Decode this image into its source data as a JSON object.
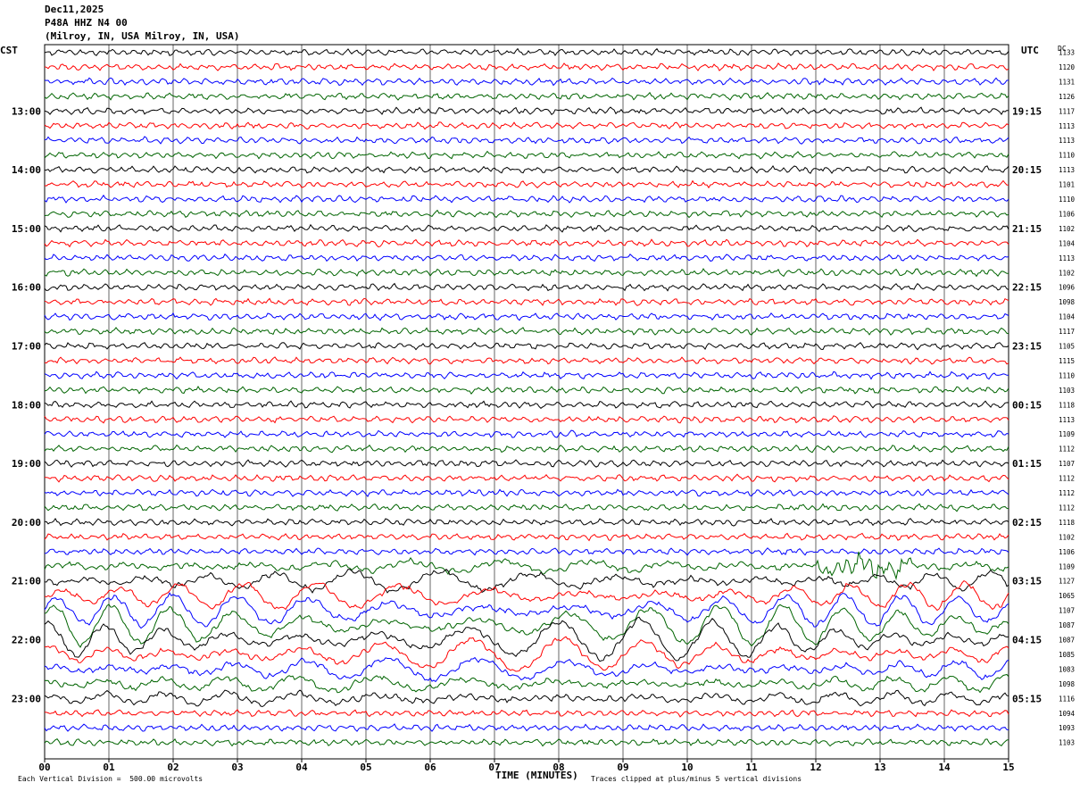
{
  "header": {
    "date": "Dec11,2025",
    "station": "P48A HHZ N4 00",
    "location": "(Milroy, IN, USA Milroy, IN, USA)"
  },
  "left_axis_title": "CST",
  "right_axis_title": "UTC",
  "right_column_title": "DC",
  "footer": {
    "vertical_scale": "Each Vertical Division =  500.00 microvolts",
    "time_label": "TIME (MINUTES)",
    "clip_note": "Traces clipped at plus/minus 5 vertical divisions"
  },
  "colors": {
    "trace_cycle": [
      "#000000",
      "#ff0000",
      "#0000ff",
      "#006400"
    ],
    "grid": "#000000"
  },
  "chart_data": {
    "type": "line",
    "title": "P48A HHZ N4 00",
    "xlabel": "TIME (MINUTES)",
    "xlim": [
      0,
      15
    ],
    "x_ticks": [
      "00",
      "01",
      "02",
      "03",
      "04",
      "05",
      "06",
      "07",
      "08",
      "09",
      "10",
      "11",
      "12",
      "13",
      "14",
      "15"
    ],
    "left_time_labels": [
      "13:00",
      "14:00",
      "15:00",
      "16:00",
      "17:00",
      "18:00",
      "19:00",
      "20:00",
      "21:00",
      "22:00",
      "23:00"
    ],
    "right_time_labels": [
      "19:15",
      "20:15",
      "21:15",
      "22:15",
      "23:15",
      "00:15",
      "01:15",
      "02:15",
      "03:15",
      "04:15",
      "05:15"
    ],
    "dc_offsets": [
      "1133",
      "1120",
      "1131",
      "1126",
      "1117",
      "1113",
      "1113",
      "1110",
      "1113",
      "1101",
      "1110",
      "1106",
      "1102",
      "1104",
      "1113",
      "1102",
      "1096",
      "1098",
      "1104",
      "1117",
      "1105",
      "1115",
      "1110",
      "1103",
      "1118",
      "1113",
      "1109",
      "1112",
      "1107",
      "1112",
      "1112",
      "1112",
      "1118",
      "1102",
      "1106",
      "1109",
      "1127",
      "1065",
      "1107",
      "1087",
      "1087",
      "1085",
      "1083",
      "1098",
      "1116",
      "1094",
      "1093",
      "1103"
    ],
    "trace_count": 48,
    "minutes_per_trace": 15,
    "vertical_division_microvolts": 500.0,
    "clip_divisions": 5
  }
}
